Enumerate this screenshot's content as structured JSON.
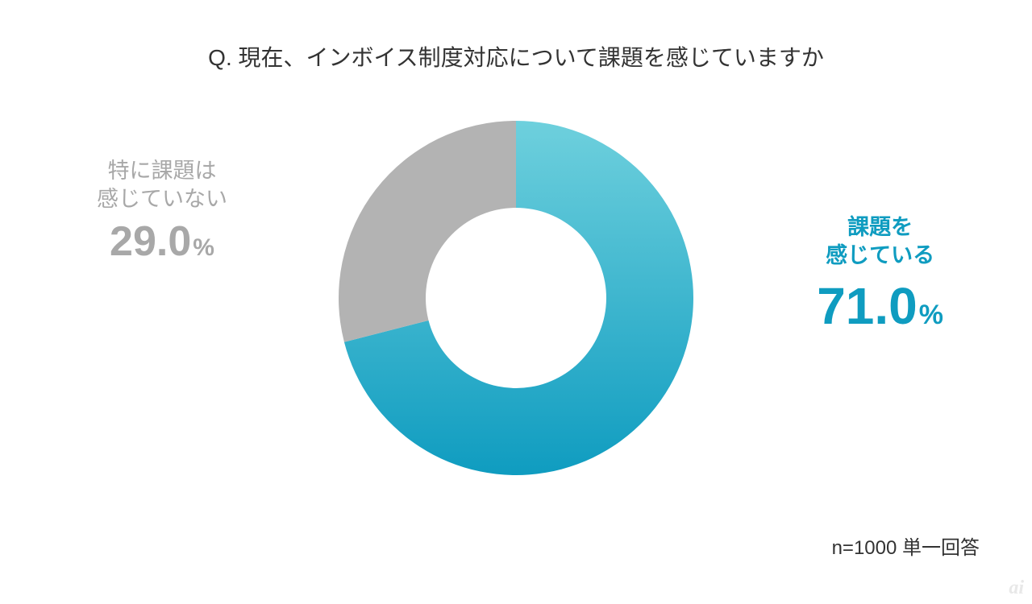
{
  "title": "Q. 現在、インボイス制度対応について課題を感じていますか",
  "chart": {
    "type": "donut",
    "background_color": "#ffffff",
    "outer_radius": 220,
    "inner_radius": 112,
    "start_angle_deg": -90,
    "segments": [
      {
        "key": "yes",
        "label_line1": "課題を",
        "label_line2": "感じている",
        "value": 71.0,
        "value_display": "71.0",
        "gradient_from": "#6ed0dd",
        "gradient_to": "#0f9cc0",
        "label_color": "#0f9cc0"
      },
      {
        "key": "no",
        "label_line1": "特に課題は",
        "label_line2": "感じていない",
        "value": 29.0,
        "value_display": "29.0",
        "color": "#b3b3b3",
        "label_color": "#a8a8a8"
      }
    ]
  },
  "pct_sign": "%",
  "footnote": "n=1000 単一回答",
  "watermark": "ai"
}
